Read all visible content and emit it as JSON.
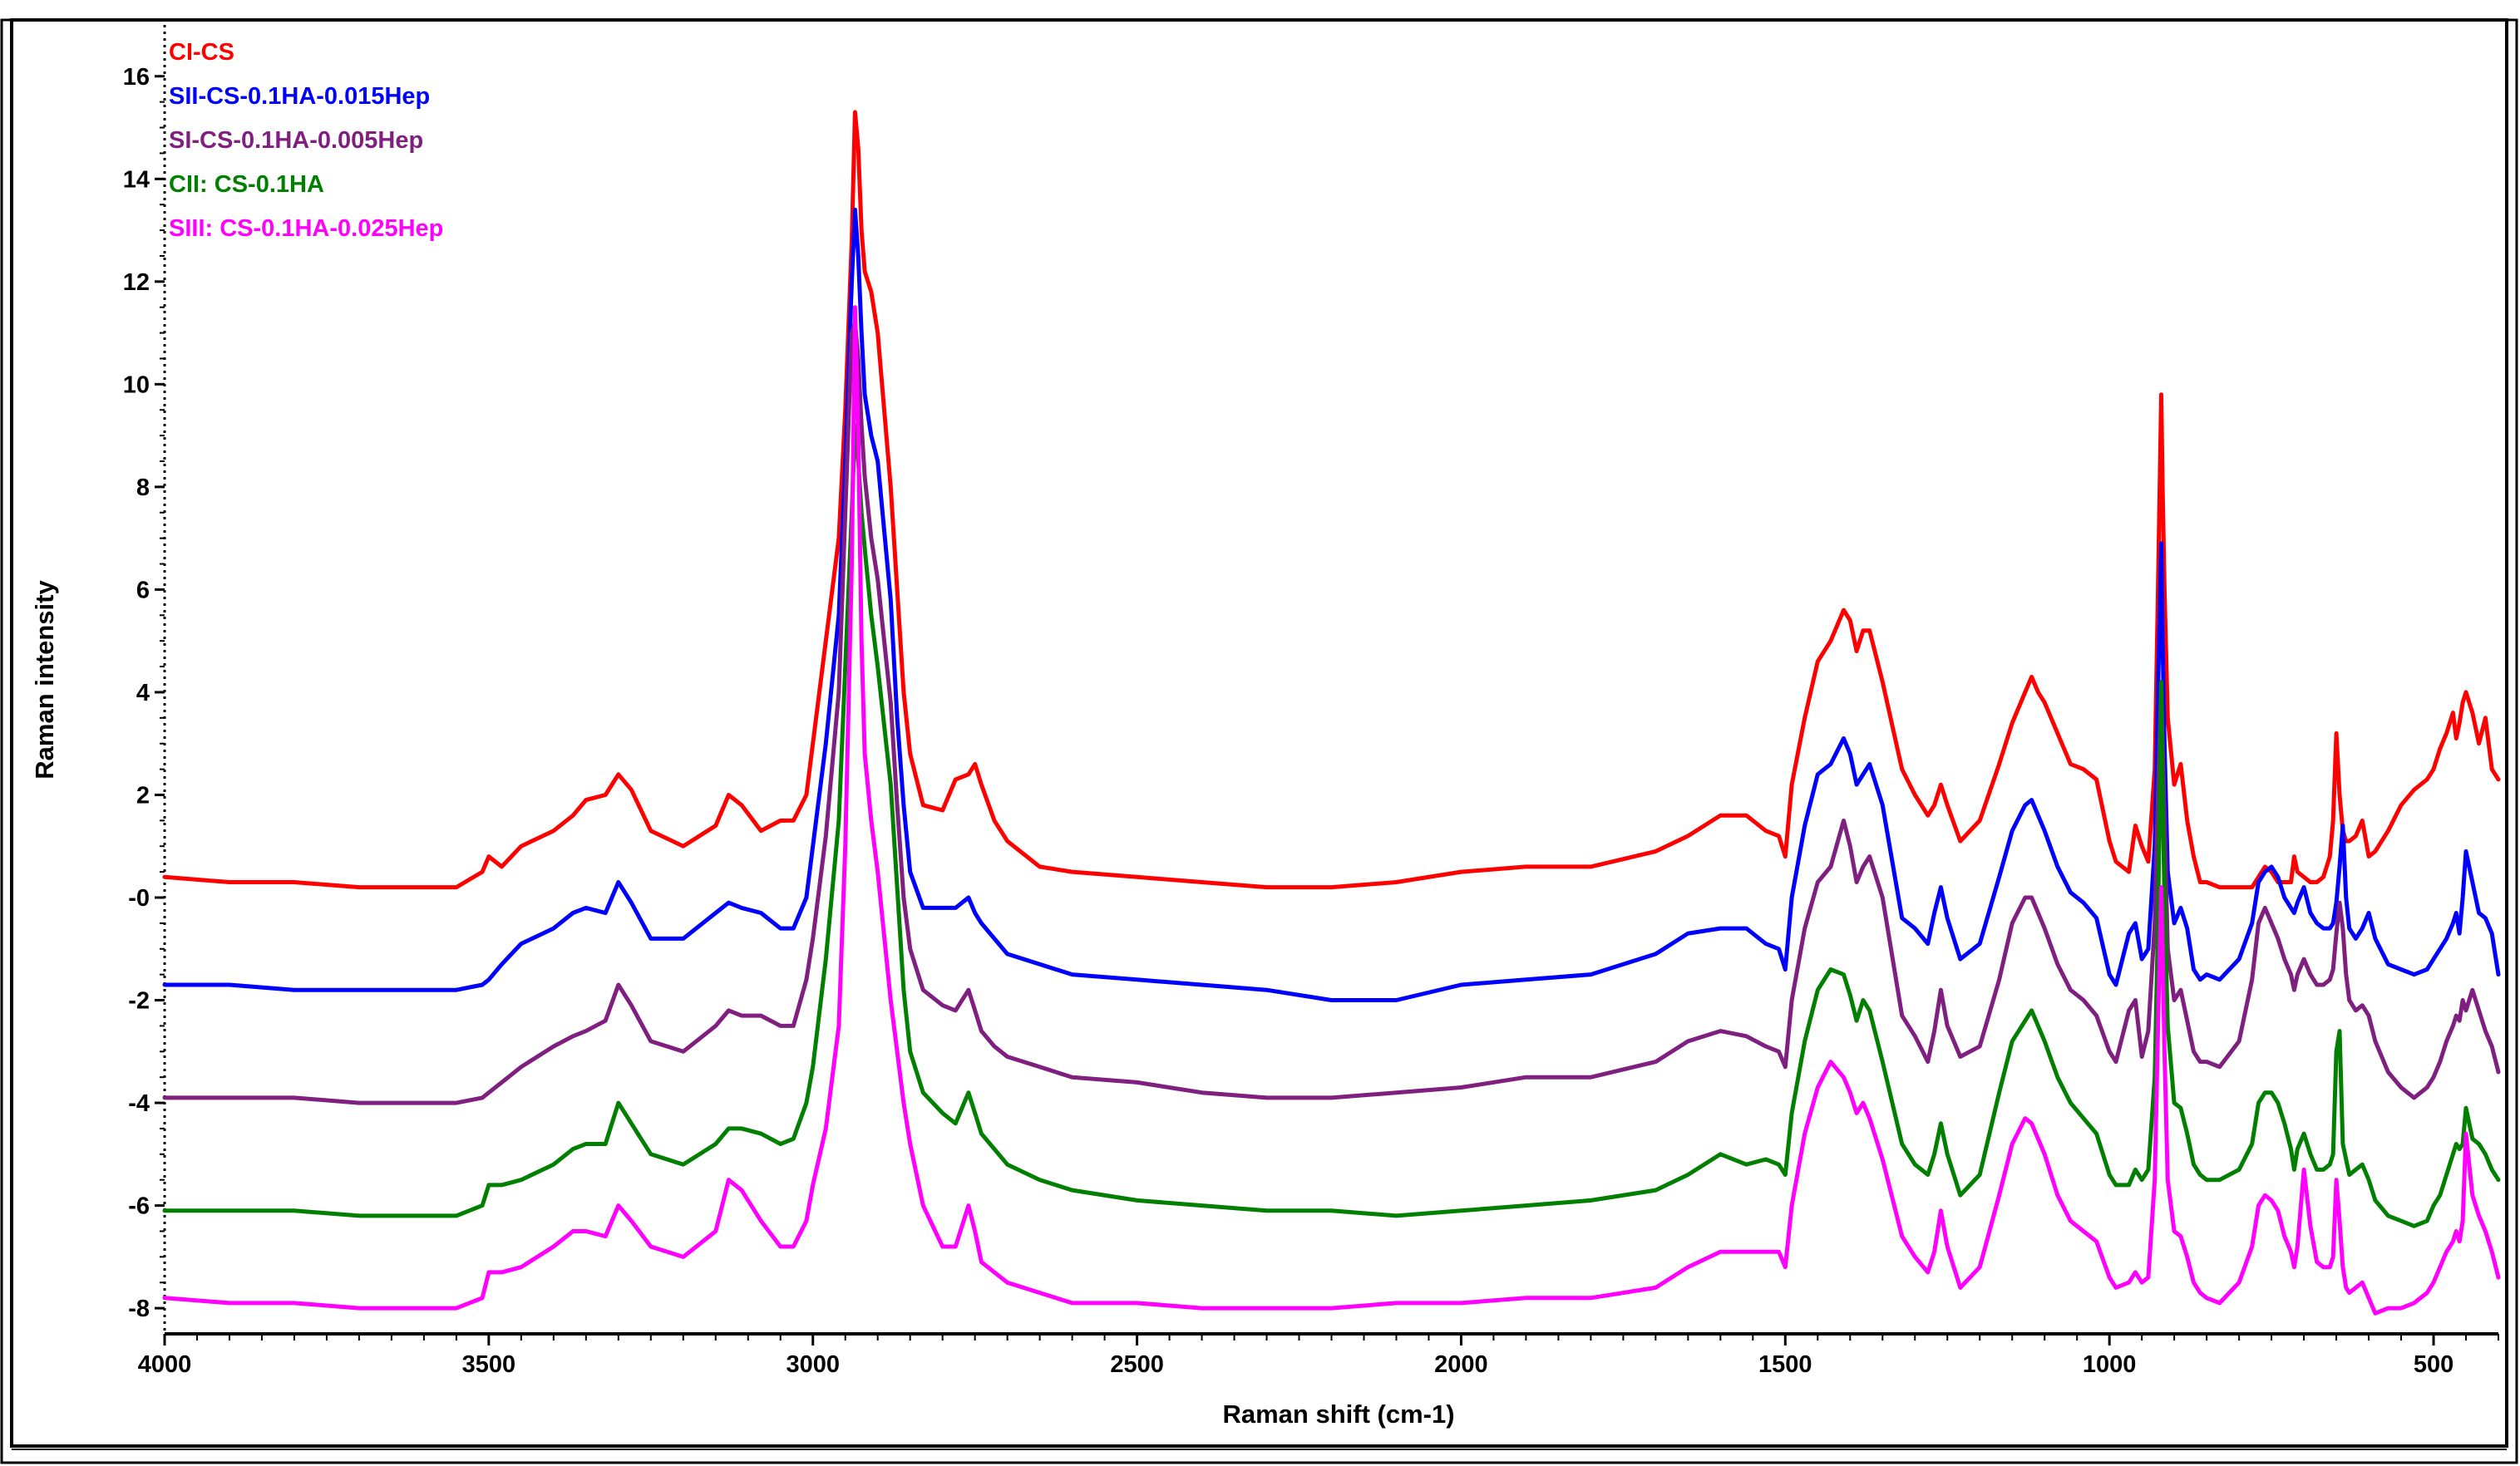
{
  "chart_data": {
    "type": "line",
    "title": "",
    "xlabel": "Raman shift (cm-1)",
    "ylabel": "Raman intensity",
    "xlim": [
      4000,
      400
    ],
    "ylim": [
      -8.5,
      17
    ],
    "x_reversed": true,
    "x_ticks": [
      4000,
      3500,
      3000,
      2500,
      2000,
      1500,
      1000,
      500
    ],
    "x_tick_labels": [
      "4000",
      "3500",
      "3000",
      "2500",
      "2000",
      "1500",
      "1000",
      "500"
    ],
    "y_ticks": [
      -8,
      -6,
      -4,
      -2,
      0,
      2,
      4,
      6,
      8,
      10,
      12,
      14,
      16
    ],
    "y_tick_labels": [
      "-8",
      "-6",
      "-4",
      "-2",
      "-0",
      "2",
      "4",
      "6",
      "8",
      "10",
      "12",
      "14",
      "16"
    ],
    "grid": false,
    "legend_position": "top-left",
    "x": [
      4000,
      3900,
      3800,
      3700,
      3600,
      3550,
      3510,
      3500,
      3480,
      3450,
      3400,
      3370,
      3350,
      3320,
      3300,
      3280,
      3250,
      3200,
      3150,
      3130,
      3110,
      3080,
      3050,
      3030,
      3010,
      3000,
      2980,
      2960,
      2950,
      2940,
      2935,
      2930,
      2925,
      2920,
      2910,
      2900,
      2880,
      2870,
      2860,
      2850,
      2830,
      2800,
      2780,
      2760,
      2750,
      2740,
      2720,
      2700,
      2650,
      2600,
      2500,
      2400,
      2300,
      2200,
      2100,
      2000,
      1900,
      1800,
      1700,
      1650,
      1600,
      1560,
      1530,
      1510,
      1500,
      1490,
      1470,
      1450,
      1430,
      1410,
      1400,
      1390,
      1380,
      1370,
      1350,
      1320,
      1300,
      1280,
      1270,
      1260,
      1250,
      1230,
      1200,
      1170,
      1150,
      1130,
      1120,
      1110,
      1100,
      1080,
      1060,
      1040,
      1020,
      1000,
      990,
      970,
      960,
      950,
      940,
      930,
      925,
      920,
      918,
      915,
      910,
      900,
      890,
      880,
      870,
      860,
      850,
      830,
      800,
      780,
      770,
      760,
      750,
      740,
      730,
      720,
      715,
      710,
      700,
      690,
      680,
      670,
      660,
      655,
      650,
      645,
      640,
      635,
      630,
      620,
      610,
      600,
      590,
      570,
      550,
      530,
      510,
      500,
      490,
      480,
      470,
      465,
      460,
      455,
      450,
      440,
      430,
      420,
      410,
      400
    ],
    "series": [
      {
        "name": "CI-CS",
        "color": "#ff0000",
        "values": [
          0.4,
          0.3,
          0.3,
          0.2,
          0.2,
          0.2,
          0.5,
          0.8,
          0.6,
          1.0,
          1.3,
          1.6,
          1.9,
          2.0,
          2.4,
          2.1,
          1.3,
          1.0,
          1.4,
          2.0,
          1.8,
          1.3,
          1.5,
          1.5,
          2.0,
          3.0,
          5.0,
          7.0,
          9.5,
          12.8,
          15.3,
          14.6,
          13.0,
          12.2,
          11.8,
          11.0,
          8.0,
          6.0,
          4.0,
          2.8,
          1.8,
          1.7,
          2.3,
          2.4,
          2.6,
          2.2,
          1.5,
          1.1,
          0.6,
          0.5,
          0.4,
          0.3,
          0.2,
          0.2,
          0.3,
          0.5,
          0.6,
          0.6,
          0.9,
          1.2,
          1.6,
          1.6,
          1.3,
          1.2,
          0.8,
          2.2,
          3.5,
          4.6,
          5.0,
          5.6,
          5.4,
          4.8,
          5.2,
          5.2,
          4.2,
          2.5,
          2.0,
          1.6,
          1.8,
          2.2,
          1.8,
          1.1,
          1.5,
          2.6,
          3.4,
          4.0,
          4.3,
          4.0,
          3.8,
          3.2,
          2.6,
          2.5,
          2.3,
          1.1,
          0.7,
          0.5,
          1.4,
          1.0,
          0.7,
          2.5,
          6.0,
          9.8,
          8.0,
          6.0,
          3.5,
          2.2,
          2.6,
          1.5,
          0.8,
          0.3,
          0.3,
          0.2,
          0.2,
          0.2,
          0.4,
          0.6,
          0.5,
          0.3,
          0.3,
          0.3,
          0.8,
          0.5,
          0.4,
          0.3,
          0.3,
          0.4,
          0.8,
          1.5,
          3.2,
          2.0,
          1.3,
          1.1,
          1.1,
          1.2,
          1.5,
          0.8,
          0.9,
          1.3,
          1.8,
          2.1,
          2.3,
          2.5,
          2.9,
          3.2,
          3.6,
          3.1,
          3.4,
          3.8,
          4.0,
          3.6,
          3.0,
          3.5,
          2.5,
          2.3
        ]
      },
      {
        "name": "SII-CS-0.1HA-0.015Hep",
        "color": "#0000ff",
        "values": [
          -1.7,
          -1.7,
          -1.8,
          -1.8,
          -1.8,
          -1.8,
          -1.7,
          -1.6,
          -1.3,
          -0.9,
          -0.6,
          -0.3,
          -0.2,
          -0.3,
          0.3,
          -0.1,
          -0.8,
          -0.8,
          -0.3,
          -0.1,
          -0.2,
          -0.3,
          -0.6,
          -0.6,
          0.0,
          1.0,
          3.0,
          5.5,
          8.5,
          12.0,
          13.4,
          12.5,
          11.0,
          9.8,
          9.0,
          8.5,
          5.8,
          3.5,
          1.8,
          0.5,
          -0.2,
          -0.2,
          -0.2,
          0.0,
          -0.3,
          -0.5,
          -0.8,
          -1.1,
          -1.3,
          -1.5,
          -1.6,
          -1.7,
          -1.8,
          -2.0,
          -2.0,
          -1.7,
          -1.6,
          -1.5,
          -1.1,
          -0.7,
          -0.6,
          -0.6,
          -0.9,
          -1.0,
          -1.4,
          0.0,
          1.4,
          2.4,
          2.6,
          3.1,
          2.8,
          2.2,
          2.4,
          2.6,
          1.8,
          -0.4,
          -0.6,
          -0.9,
          -0.3,
          0.2,
          -0.4,
          -1.2,
          -0.9,
          0.4,
          1.3,
          1.8,
          1.9,
          1.6,
          1.3,
          0.6,
          0.1,
          -0.1,
          -0.4,
          -1.5,
          -1.7,
          -0.7,
          -0.5,
          -1.2,
          -1.0,
          1.0,
          4.0,
          6.9,
          5.0,
          3.0,
          0.5,
          -0.5,
          -0.2,
          -0.6,
          -1.4,
          -1.6,
          -1.5,
          -1.6,
          -1.2,
          -0.5,
          0.3,
          0.5,
          0.6,
          0.4,
          0.0,
          -0.2,
          -0.3,
          -0.1,
          0.2,
          -0.3,
          -0.5,
          -0.6,
          -0.6,
          -0.5,
          -0.1,
          0.6,
          1.4,
          0.0,
          -0.6,
          -0.8,
          -0.6,
          -0.3,
          -0.8,
          -1.3,
          -1.4,
          -1.5,
          -1.4,
          -1.2,
          -1.0,
          -0.8,
          -0.5,
          -0.3,
          -0.7,
          0.0,
          0.9,
          0.3,
          -0.3,
          -0.4,
          -0.7,
          -1.5
        ]
      },
      {
        "name": "SI-CS-0.1HA-0.005Hep",
        "color": "#7f1f7f",
        "values": [
          -3.9,
          -3.9,
          -3.9,
          -4.0,
          -4.0,
          -4.0,
          -3.9,
          -3.8,
          -3.6,
          -3.3,
          -2.9,
          -2.7,
          -2.6,
          -2.4,
          -1.7,
          -2.1,
          -2.8,
          -3.0,
          -2.5,
          -2.2,
          -2.3,
          -2.3,
          -2.5,
          -2.5,
          -1.6,
          -0.8,
          1.2,
          4.0,
          7.5,
          11.0,
          11.2,
          10.5,
          9.2,
          8.2,
          7.0,
          6.2,
          3.8,
          1.8,
          0.0,
          -1.0,
          -1.8,
          -2.1,
          -2.2,
          -1.8,
          -2.2,
          -2.6,
          -2.9,
          -3.1,
          -3.3,
          -3.5,
          -3.6,
          -3.8,
          -3.9,
          -3.9,
          -3.8,
          -3.7,
          -3.5,
          -3.5,
          -3.2,
          -2.8,
          -2.6,
          -2.7,
          -2.9,
          -3.0,
          -3.3,
          -2.0,
          -0.6,
          0.3,
          0.6,
          1.5,
          1.0,
          0.3,
          0.6,
          0.8,
          0.0,
          -2.3,
          -2.7,
          -3.2,
          -2.6,
          -1.8,
          -2.5,
          -3.1,
          -2.9,
          -1.6,
          -0.5,
          0.0,
          0.0,
          -0.3,
          -0.6,
          -1.3,
          -1.8,
          -2.0,
          -2.3,
          -3.0,
          -3.2,
          -2.2,
          -2.0,
          -3.1,
          -2.6,
          -0.5,
          2.0,
          4.2,
          3.0,
          1.5,
          -1.0,
          -2.0,
          -1.8,
          -2.4,
          -3.0,
          -3.2,
          -3.2,
          -3.3,
          -2.8,
          -1.6,
          -0.5,
          -0.2,
          -0.5,
          -0.8,
          -1.2,
          -1.5,
          -1.8,
          -1.5,
          -1.2,
          -1.5,
          -1.7,
          -1.7,
          -1.6,
          -1.4,
          -0.7,
          -0.1,
          -0.6,
          -1.5,
          -2.0,
          -2.2,
          -2.1,
          -2.3,
          -2.8,
          -3.4,
          -3.7,
          -3.9,
          -3.7,
          -3.5,
          -3.2,
          -2.8,
          -2.5,
          -2.3,
          -2.4,
          -2.0,
          -2.2,
          -1.8,
          -2.2,
          -2.6,
          -2.9,
          -3.4
        ]
      },
      {
        "name": "CII: CS-0.1HA",
        "color": "#007f00",
        "values": [
          -6.1,
          -6.1,
          -6.1,
          -6.2,
          -6.2,
          -6.2,
          -6.0,
          -5.6,
          -5.6,
          -5.5,
          -5.2,
          -4.9,
          -4.8,
          -4.8,
          -4.0,
          -4.4,
          -5.0,
          -5.2,
          -4.8,
          -4.5,
          -4.5,
          -4.6,
          -4.8,
          -4.7,
          -4.0,
          -3.3,
          -1.2,
          1.5,
          4.5,
          7.5,
          9.2,
          8.5,
          7.5,
          6.8,
          5.5,
          4.5,
          2.2,
          0.2,
          -1.8,
          -3.0,
          -3.8,
          -4.2,
          -4.4,
          -3.8,
          -4.2,
          -4.6,
          -4.9,
          -5.2,
          -5.5,
          -5.7,
          -5.9,
          -6.0,
          -6.1,
          -6.1,
          -6.2,
          -6.1,
          -6.0,
          -5.9,
          -5.7,
          -5.4,
          -5.0,
          -5.2,
          -5.1,
          -5.2,
          -5.4,
          -4.2,
          -2.8,
          -1.8,
          -1.4,
          -1.5,
          -1.9,
          -2.4,
          -2.0,
          -2.2,
          -3.2,
          -4.8,
          -5.2,
          -5.4,
          -5.0,
          -4.4,
          -5.0,
          -5.8,
          -5.4,
          -3.8,
          -2.8,
          -2.4,
          -2.2,
          -2.5,
          -2.8,
          -3.5,
          -4.0,
          -4.3,
          -4.6,
          -5.4,
          -5.6,
          -5.6,
          -5.3,
          -5.5,
          -5.3,
          -3.5,
          -0.5,
          4.2,
          2.0,
          0.0,
          -2.5,
          -4.0,
          -4.1,
          -4.6,
          -5.2,
          -5.4,
          -5.5,
          -5.5,
          -5.3,
          -4.8,
          -4.0,
          -3.8,
          -3.8,
          -4.0,
          -4.4,
          -4.9,
          -5.3,
          -4.9,
          -4.6,
          -5.0,
          -5.3,
          -5.3,
          -5.2,
          -5.0,
          -3.0,
          -2.6,
          -4.8,
          -5.1,
          -5.4,
          -5.3,
          -5.2,
          -5.5,
          -5.9,
          -6.2,
          -6.3,
          -6.4,
          -6.3,
          -6.0,
          -5.8,
          -5.4,
          -5.0,
          -4.8,
          -4.9,
          -4.8,
          -4.1,
          -4.7,
          -4.8,
          -5.0,
          -5.3,
          -5.5
        ]
      },
      {
        "name": "SIII: CS-0.1HA-0.025Hep",
        "color": "#ff00ff",
        "values": [
          -7.8,
          -7.9,
          -7.9,
          -8.0,
          -8.0,
          -8.0,
          -7.8,
          -7.3,
          -7.3,
          -7.2,
          -6.8,
          -6.5,
          -6.5,
          -6.6,
          -6.0,
          -6.3,
          -6.8,
          -7.0,
          -6.5,
          -5.5,
          -5.7,
          -6.3,
          -6.8,
          -6.8,
          -6.3,
          -5.6,
          -4.5,
          -2.5,
          1.0,
          6.5,
          11.5,
          9.0,
          5.0,
          2.8,
          1.5,
          0.5,
          -2.0,
          -3.0,
          -4.0,
          -4.8,
          -6.0,
          -6.8,
          -6.8,
          -6.0,
          -6.5,
          -7.1,
          -7.3,
          -7.5,
          -7.7,
          -7.9,
          -7.9,
          -8.0,
          -8.0,
          -8.0,
          -7.9,
          -7.9,
          -7.8,
          -7.8,
          -7.6,
          -7.2,
          -6.9,
          -6.9,
          -6.9,
          -6.9,
          -7.2,
          -6.0,
          -4.6,
          -3.7,
          -3.2,
          -3.5,
          -3.8,
          -4.2,
          -4.0,
          -4.3,
          -5.1,
          -6.6,
          -7.0,
          -7.3,
          -6.9,
          -6.1,
          -6.8,
          -7.6,
          -7.2,
          -5.8,
          -4.8,
          -4.3,
          -4.4,
          -4.7,
          -5.0,
          -5.8,
          -6.3,
          -6.5,
          -6.7,
          -7.4,
          -7.6,
          -7.5,
          -7.3,
          -7.5,
          -7.4,
          -5.5,
          -2.5,
          0.2,
          -1.0,
          -3.0,
          -5.5,
          -6.5,
          -6.6,
          -7.0,
          -7.5,
          -7.7,
          -7.8,
          -7.9,
          -7.5,
          -6.8,
          -6.0,
          -5.8,
          -5.9,
          -6.1,
          -6.6,
          -6.9,
          -7.2,
          -6.8,
          -5.3,
          -6.4,
          -7.1,
          -7.2,
          -7.2,
          -7.0,
          -5.5,
          -6.3,
          -7.2,
          -7.6,
          -7.7,
          -7.6,
          -7.5,
          -7.8,
          -8.1,
          -8.0,
          -8.0,
          -7.9,
          -7.7,
          -7.5,
          -7.2,
          -6.9,
          -6.7,
          -6.5,
          -6.7,
          -6.3,
          -4.6,
          -5.8,
          -6.2,
          -6.5,
          -6.9,
          -7.4
        ]
      }
    ]
  }
}
